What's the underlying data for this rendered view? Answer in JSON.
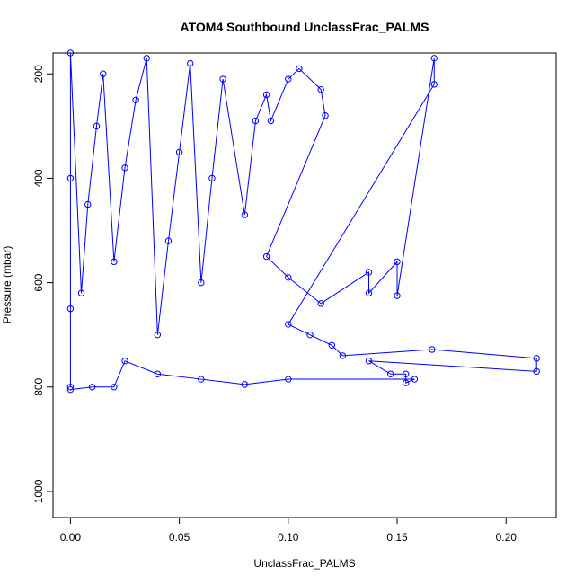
{
  "chart_data": {
    "type": "scatter",
    "title": "ATOM4 Southbound UnclassFrac_PALMS",
    "xlabel": "UnclassFrac_PALMS",
    "ylabel": "Pressure (mbar)",
    "xlim": [
      -0.008,
      0.223
    ],
    "ylim": [
      1050,
      160
    ],
    "y_reversed": true,
    "x_ticks": [
      0.0,
      0.05,
      0.1,
      0.15,
      0.2
    ],
    "x_tick_labels": [
      "0.00",
      "0.05",
      "0.10",
      "0.15",
      "0.20"
    ],
    "y_ticks": [
      200,
      400,
      600,
      800,
      1000
    ],
    "y_tick_labels": [
      "200",
      "400",
      "600",
      "800",
      "1000"
    ],
    "grid": false,
    "legend": "none",
    "marker": "open-circle",
    "color": "#0000ff",
    "connected": true,
    "series": [
      {
        "points": [
          [
            0.0,
            800
          ],
          [
            0.0,
            650
          ],
          [
            0.0,
            400
          ],
          [
            0.0,
            160
          ],
          [
            0.005,
            620
          ],
          [
            0.008,
            450
          ],
          [
            0.012,
            300
          ],
          [
            0.015,
            200
          ],
          [
            0.02,
            560
          ],
          [
            0.025,
            380
          ],
          [
            0.03,
            250
          ],
          [
            0.035,
            170
          ],
          [
            0.04,
            700
          ],
          [
            0.045,
            520
          ],
          [
            0.05,
            350
          ],
          [
            0.055,
            180
          ],
          [
            0.06,
            600
          ],
          [
            0.065,
            400
          ],
          [
            0.07,
            210
          ],
          [
            0.08,
            470
          ],
          [
            0.085,
            290
          ],
          [
            0.09,
            240
          ],
          [
            0.092,
            290
          ],
          [
            0.1,
            210
          ],
          [
            0.105,
            190
          ],
          [
            0.115,
            230
          ],
          [
            0.117,
            280
          ],
          [
            0.09,
            550
          ],
          [
            0.1,
            590
          ],
          [
            0.115,
            640
          ],
          [
            0.137,
            580
          ],
          [
            0.137,
            620
          ],
          [
            0.15,
            560
          ],
          [
            0.15,
            625
          ],
          [
            0.167,
            170
          ],
          [
            0.167,
            220
          ],
          [
            0.1,
            680
          ],
          [
            0.11,
            700
          ],
          [
            0.12,
            720
          ],
          [
            0.125,
            740
          ],
          [
            0.166,
            728
          ],
          [
            0.214,
            745
          ],
          [
            0.214,
            770
          ],
          [
            0.137,
            750
          ],
          [
            0.147,
            775
          ],
          [
            0.154,
            775
          ],
          [
            0.154,
            792
          ],
          [
            0.158,
            785
          ],
          [
            0.1,
            785
          ],
          [
            0.08,
            795
          ],
          [
            0.06,
            785
          ],
          [
            0.04,
            775
          ],
          [
            0.025,
            750
          ],
          [
            0.02,
            800
          ],
          [
            0.01,
            800
          ],
          [
            0.0,
            805
          ]
        ]
      }
    ]
  }
}
